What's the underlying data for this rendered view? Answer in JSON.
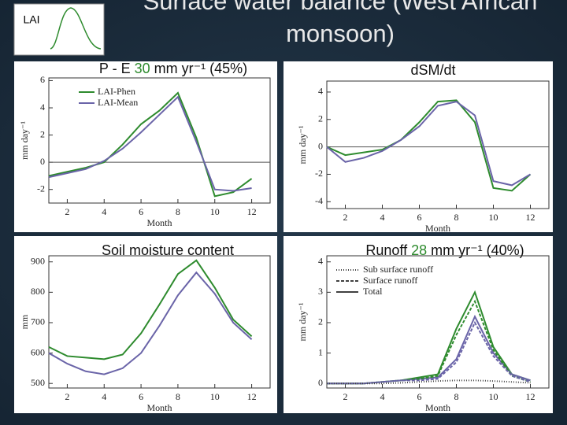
{
  "slide": {
    "title_lines": [
      "Surface water balance (West African",
      "monsoon)"
    ],
    "inset_label": "LAI"
  },
  "chart_data": [
    {
      "type": "line",
      "title": [
        "P - E ",
        "30",
        " mm yr⁻¹ (45%)"
      ],
      "xlabel": "Month",
      "ylabel": "mm day⁻¹",
      "x": [
        1,
        2,
        3,
        4,
        5,
        6,
        7,
        8,
        9,
        10,
        11,
        12
      ],
      "xlim": [
        1,
        13
      ],
      "xticks": [
        2,
        4,
        6,
        8,
        10,
        12
      ],
      "ylim": [
        -3,
        6.2
      ],
      "yticks": [
        -2,
        0,
        2,
        4,
        6
      ],
      "hline": 0,
      "legend_corner": "upper left",
      "series": [
        {
          "name": "LAI-Phen",
          "color": "#2e8b2e",
          "values": [
            -1.0,
            -0.7,
            -0.4,
            0.0,
            1.3,
            2.8,
            3.8,
            5.1,
            1.8,
            -2.5,
            -2.2,
            -1.2
          ]
        },
        {
          "name": "LAI-Mean",
          "color": "#6a64a8",
          "values": [
            -1.1,
            -0.8,
            -0.5,
            0.1,
            1.0,
            2.2,
            3.5,
            4.8,
            1.5,
            -2.0,
            -2.1,
            -1.9
          ]
        }
      ]
    },
    {
      "type": "line",
      "title": [
        "dSM/dt"
      ],
      "xlabel": "Month",
      "ylabel": "mm day⁻¹",
      "x": [
        1,
        2,
        3,
        4,
        5,
        6,
        7,
        8,
        9,
        10,
        11,
        12
      ],
      "xlim": [
        1,
        13
      ],
      "xticks": [
        2,
        4,
        6,
        8,
        10,
        12
      ],
      "ylim": [
        -4.5,
        4.8
      ],
      "yticks": [
        -4,
        -2,
        0,
        2,
        4
      ],
      "hline": 0,
      "series": [
        {
          "color": "#2e8b2e",
          "values": [
            0.0,
            -0.6,
            -0.4,
            -0.2,
            0.5,
            1.8,
            3.3,
            3.4,
            1.8,
            -3.0,
            -3.2,
            -2.0
          ]
        },
        {
          "color": "#6a64a8",
          "values": [
            0.0,
            -1.1,
            -0.8,
            -0.3,
            0.5,
            1.5,
            3.0,
            3.3,
            2.3,
            -2.5,
            -2.8,
            -2.0
          ]
        }
      ]
    },
    {
      "type": "line",
      "title": [
        "Soil moisture content"
      ],
      "xlabel": "Month",
      "ylabel": "mm",
      "x": [
        1,
        2,
        3,
        4,
        5,
        6,
        7,
        8,
        9,
        10,
        11,
        12
      ],
      "xlim": [
        1,
        13
      ],
      "xticks": [
        2,
        4,
        6,
        8,
        10,
        12
      ],
      "ylim": [
        485,
        920
      ],
      "yticks": [
        500,
        600,
        700,
        800,
        900
      ],
      "series": [
        {
          "color": "#2e8b2e",
          "values": [
            620,
            590,
            585,
            580,
            595,
            665,
            760,
            860,
            905,
            815,
            710,
            655
          ]
        },
        {
          "color": "#6a64a8",
          "values": [
            600,
            565,
            540,
            530,
            550,
            600,
            690,
            790,
            865,
            795,
            700,
            645
          ]
        }
      ]
    },
    {
      "type": "line",
      "title": [
        "Runoff ",
        "28",
        " mm yr⁻¹ (40%)"
      ],
      "xlabel": "Month",
      "ylabel": "mm day⁻¹",
      "x": [
        1,
        2,
        3,
        4,
        5,
        6,
        7,
        8,
        9,
        10,
        11,
        12
      ],
      "xlim": [
        1,
        13
      ],
      "xticks": [
        2,
        4,
        6,
        8,
        10,
        12
      ],
      "ylim": [
        -0.15,
        4.2
      ],
      "yticks": [
        0,
        1,
        2,
        3,
        4
      ],
      "legend_corner": "upper left",
      "legend": [
        {
          "name": "Sub surface runoff",
          "dash": "1,2"
        },
        {
          "name": "Surface runoff",
          "dash": "4,2"
        },
        {
          "name": "Total",
          "dash": "none"
        }
      ],
      "series": [
        {
          "color": "#2e8b2e",
          "dash": "none",
          "values": [
            0.0,
            0.0,
            0.0,
            0.05,
            0.1,
            0.2,
            0.3,
            1.8,
            3.0,
            1.2,
            0.3,
            0.1
          ]
        },
        {
          "color": "#6a64a8",
          "dash": "none",
          "values": [
            0.0,
            0.0,
            0.0,
            0.05,
            0.1,
            0.15,
            0.2,
            0.8,
            2.2,
            1.0,
            0.3,
            0.1
          ]
        },
        {
          "color": "#2e8b2e",
          "dash": "4,2",
          "values": [
            0.0,
            0.0,
            0.0,
            0.05,
            0.1,
            0.15,
            0.25,
            1.6,
            2.7,
            1.1,
            0.25,
            0.05
          ]
        },
        {
          "color": "#6a64a8",
          "dash": "4,2",
          "values": [
            0.0,
            0.0,
            0.0,
            0.05,
            0.1,
            0.1,
            0.15,
            0.7,
            2.0,
            0.9,
            0.25,
            0.05
          ]
        },
        {
          "color": "#444444",
          "dash": "1,2",
          "values": [
            0.0,
            0.0,
            0.0,
            0.0,
            0.02,
            0.05,
            0.08,
            0.1,
            0.1,
            0.08,
            0.05,
            0.02
          ]
        }
      ]
    }
  ]
}
